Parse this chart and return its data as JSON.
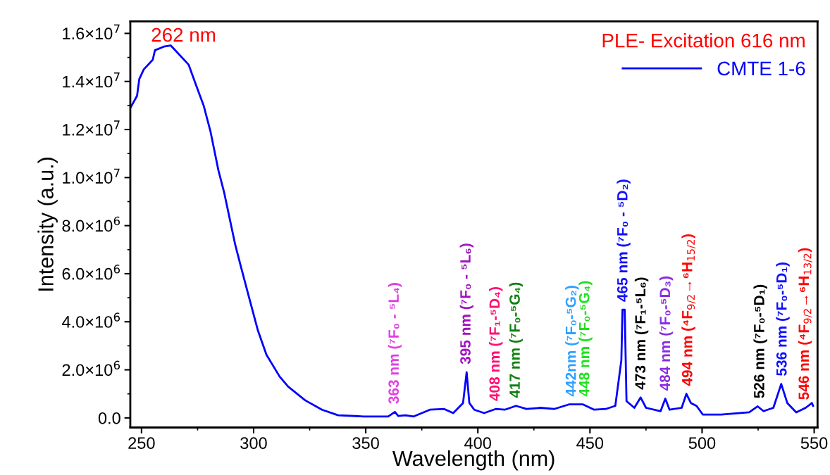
{
  "chart_data": {
    "type": "line",
    "xlabel": "Wavelength (nm)",
    "ylabel": "Intensity (a.u.)",
    "legend_title": "PLE- Excitation 616 nm",
    "legend": "top right",
    "grid": false,
    "marker": "none",
    "line_style": "solid",
    "xlim": [
      245,
      551.5
    ],
    "xticks": [
      250,
      300,
      350,
      400,
      450,
      500,
      550
    ],
    "ylim": [
      -400000,
      16500000
    ],
    "yticks": [
      {
        "value": 0,
        "label": "0.0"
      },
      {
        "value": 2000000,
        "label": "2.0×10$^{6}$"
      },
      {
        "value": 4000000,
        "label": "4.0×10$^{6}$"
      },
      {
        "value": 6000000,
        "label": "6.0×10$^{6}$"
      },
      {
        "value": 8000000,
        "label": "8.0×10$^{6}$"
      },
      {
        "value": 10000000,
        "label": "1.0×10$^{7}$"
      },
      {
        "value": 12000000,
        "label": "1.2×10$^{7}$"
      },
      {
        "value": 14000000,
        "label": "1.4×10$^{7}$"
      },
      {
        "value": 16000000,
        "label": "1.6×10$^{7}$"
      }
    ],
    "series": [
      {
        "name": "CMTE 1-6",
        "color": "#0000ff",
        "x": [
          245,
          248,
          249,
          251,
          255,
          256,
          260,
          263,
          266,
          271,
          274.5,
          277.7,
          280.8,
          284.3,
          286.8,
          289.3,
          291.8,
          294.3,
          298,
          301.9,
          305.7,
          311.6,
          315.4,
          323,
          330.5,
          337.7,
          349,
          360,
          363,
          364.5,
          367.6,
          371.4,
          378.6,
          385,
          389,
          393.4,
          395,
          396.2,
          398.4,
          402.8,
          407.9,
          412,
          417,
          421.7,
          428,
          434,
          440.6,
          446.9,
          451.9,
          457,
          461.3,
          464,
          464.5,
          465.5,
          466.3,
          469.8,
          472.6,
          475,
          481.5,
          483.6,
          485.5,
          490.9,
          493,
          495,
          497.5,
          500.3,
          508.5,
          521,
          524.8,
          527.4,
          531.8,
          535.3,
          538,
          542,
          546.2,
          549,
          549.5
        ],
        "values": [
          12900000,
          13400000,
          14100000,
          14500000,
          14900000,
          15300000,
          15450000,
          15500000,
          15200000,
          14700000,
          13800000,
          13000000,
          11900000,
          10300000,
          9400000,
          8300000,
          7200000,
          6300000,
          5000000,
          3640000,
          2630000,
          1720000,
          1300000,
          730000,
          340000,
          110000,
          60000,
          60000,
          250000,
          80000,
          110000,
          60000,
          340000,
          370000,
          200000,
          620000,
          1900000,
          620000,
          340000,
          200000,
          370000,
          340000,
          500000,
          370000,
          420000,
          370000,
          560000,
          560000,
          340000,
          370000,
          500000,
          2400000,
          4500000,
          4500000,
          700000,
          420000,
          850000,
          420000,
          280000,
          800000,
          340000,
          420000,
          1000000,
          620000,
          500000,
          140000,
          140000,
          230000,
          480000,
          280000,
          420000,
          1410000,
          620000,
          230000,
          420000,
          620000,
          500000
        ]
      }
    ],
    "annotations": [
      "262 nm",
      {
        "text": "363 nm (⁷F₀ - ⁵L₄)",
        "x": 363,
        "y": 250000
      },
      {
        "text": "395 nm (⁷F₀ - ⁵L₆)",
        "x": 395,
        "y": 1900000
      },
      {
        "text": "408 nm (⁷F₁-⁵D₄)",
        "x": 408,
        "y": 370000
      },
      {
        "text": "417 nm (⁷F₀-⁵G₄)",
        "x": 417,
        "y": 500000
      },
      {
        "text": "442nm (⁷F₀-⁵G₂)",
        "x": 442,
        "y": 560000
      },
      {
        "text": "448 nm (⁷F₀-⁵G₄)",
        "x": 448,
        "y": 560000
      },
      {
        "text": "465 nm (⁷F₀ - ⁵D₂)",
        "x": 465,
        "y": 4500000
      },
      {
        "text": "473 nm (⁷F₁-⁵L₆)",
        "x": 473,
        "y": 850000
      },
      {
        "text": "484 nm (⁷F₀-⁵D₃)",
        "x": 484,
        "y": 800000
      },
      {
        "text": "494 nm (⁴F$_{9/2}$→⁶H$_{15/2}$)",
        "x": 494,
        "y": 1000000
      },
      {
        "text": "526 nm (⁷F₀-⁵D₁)",
        "x": 526,
        "y": 480000
      },
      {
        "text": "536 nm (⁷F₀-⁵D₁)",
        "x": 536,
        "y": 1410000
      },
      {
        "text": "546 nm (⁴F$_{9/2}$→⁶H$_{13/2}$)",
        "x": 546,
        "y": 420000
      }
    ]
  }
}
